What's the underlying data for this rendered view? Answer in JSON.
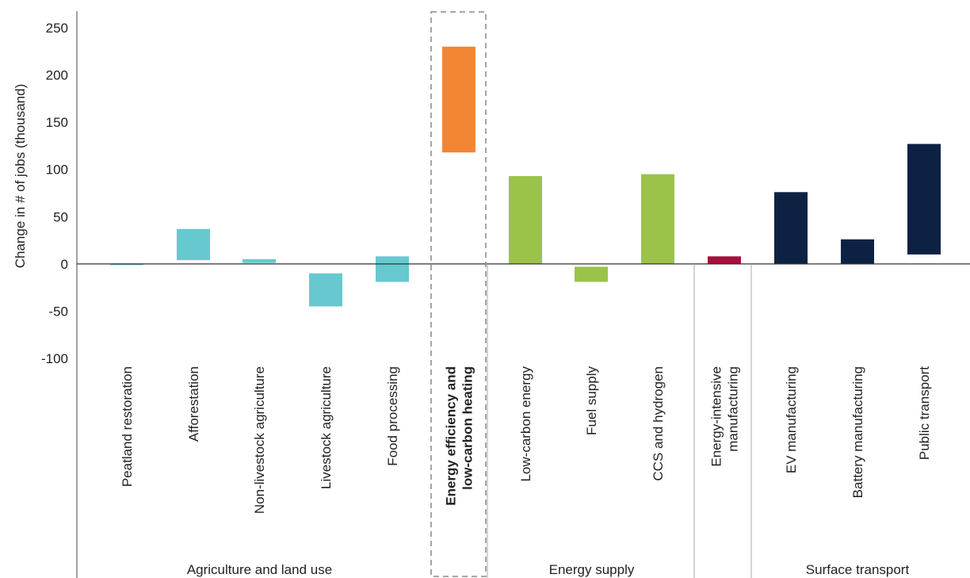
{
  "chart_data": {
    "type": "bar",
    "subtype": "floating-range",
    "ylabel": "Change in # of jobs (thousand)",
    "ylim": [
      -100,
      250
    ],
    "yticks": [
      "250",
      "200",
      "150",
      "100",
      "50",
      "0",
      "-50",
      "-100"
    ],
    "ytick_values": [
      250,
      200,
      150,
      100,
      50,
      0,
      -50,
      -100
    ],
    "groups": [
      {
        "label": "Agriculture and land use",
        "categories": [
          0,
          1,
          2,
          3,
          4
        ]
      },
      {
        "label": "",
        "categories": [
          5
        ],
        "highlighted": true
      },
      {
        "label": "Energy supply",
        "categories": [
          6,
          7,
          8
        ]
      },
      {
        "label": "",
        "categories": [
          9
        ]
      },
      {
        "label": "Surface transport",
        "categories": [
          10,
          11,
          12
        ]
      }
    ],
    "categories": [
      {
        "label": [
          "Peatland restoration"
        ],
        "low": -1,
        "high": 0,
        "color": "#67c9cf"
      },
      {
        "label": [
          "Afforestation"
        ],
        "low": 4,
        "high": 37,
        "color": "#67c9cf"
      },
      {
        "label": [
          "Non-livestock agriculture"
        ],
        "low": 1,
        "high": 5,
        "color": "#67c9cf"
      },
      {
        "label": [
          "Livestock agriculture"
        ],
        "low": -45,
        "high": -10,
        "color": "#67c9cf"
      },
      {
        "label": [
          "Food processing"
        ],
        "low": -19,
        "high": 8,
        "color": "#67c9cf"
      },
      {
        "label": [
          "Energy efficiency and",
          "low-carbon heating"
        ],
        "low": 118,
        "high": 230,
        "color": "#f28633",
        "bold": true
      },
      {
        "label": [
          "Low-carbon energy"
        ],
        "low": 0,
        "high": 93,
        "color": "#9bc34a"
      },
      {
        "label": [
          "Fuel supply"
        ],
        "low": -19,
        "high": -3,
        "color": "#9bc34a"
      },
      {
        "label": [
          "CCS and hydrogen"
        ],
        "low": 0,
        "high": 95,
        "color": "#9bc34a"
      },
      {
        "label": [
          "Energy-intensive",
          "manufacturing"
        ],
        "low": 0,
        "high": 8,
        "color": "#a80f3c"
      },
      {
        "label": [
          "EV manufacturing"
        ],
        "low": 0,
        "high": 76,
        "color": "#0d2243"
      },
      {
        "label": [
          "Battery manufacturing"
        ],
        "low": 0,
        "high": 26,
        "color": "#0d2243"
      },
      {
        "label": [
          "Public transport"
        ],
        "low": 10,
        "high": 127,
        "color": "#0d2243"
      }
    ]
  }
}
